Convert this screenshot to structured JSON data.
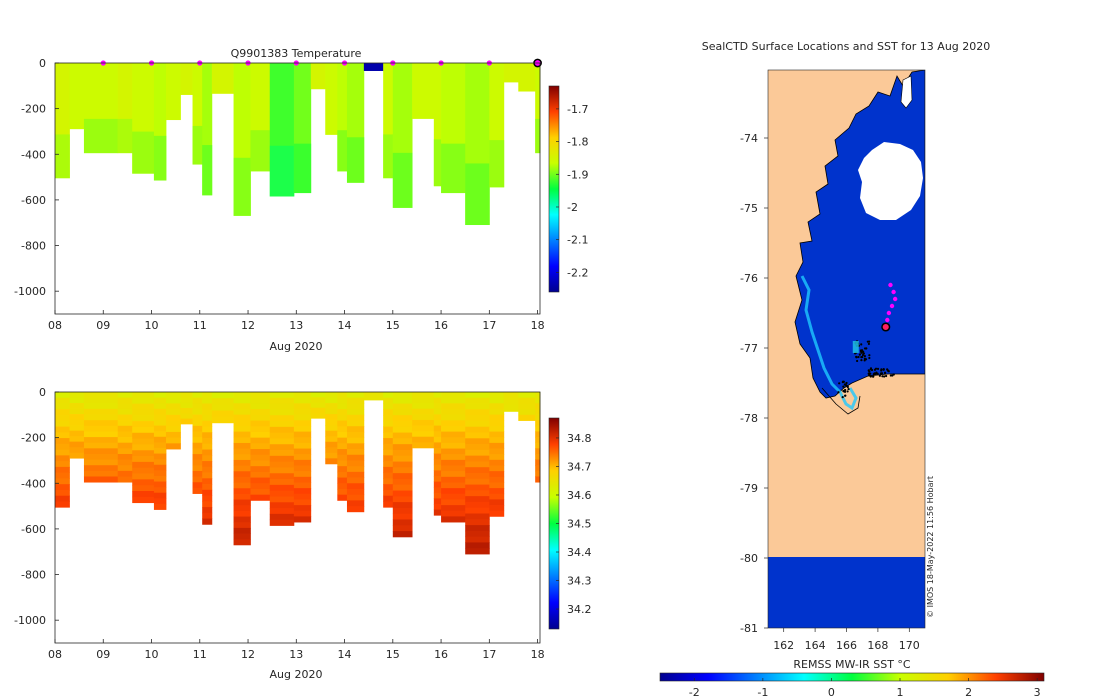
{
  "chart_data": [
    {
      "type": "heatmap",
      "title": "Q9901383  Temperature",
      "xlabel": "Aug 2020",
      "ylabel": "",
      "x_ticks": [
        "08",
        "09",
        "10",
        "11",
        "12",
        "13",
        "14",
        "15",
        "16",
        "17",
        "18"
      ],
      "x_tick_values": [
        8,
        9,
        10,
        11,
        12,
        13,
        14,
        15,
        16,
        17,
        18
      ],
      "xlim": [
        8,
        18.05
      ],
      "ylim": [
        -1100,
        0
      ],
      "y_ticks": [
        0,
        -200,
        -400,
        -600,
        -800,
        -1000
      ],
      "y_tick_labels": [
        "0",
        "-200",
        "-400",
        "-600",
        "-800",
        "-1000"
      ],
      "colorbar": {
        "ticks": [
          "-1.7",
          "-1.8",
          "-1.9",
          "-2",
          "-2.1",
          "-2.2"
        ],
        "tick_values": [
          -1.7,
          -1.8,
          -1.9,
          -2.0,
          -2.1,
          -2.2
        ],
        "range": [
          -2.26,
          -1.63
        ]
      },
      "profile_dates": [
        9,
        10,
        11,
        12,
        13,
        14,
        15,
        16,
        17
      ],
      "highlight_date": 18.0,
      "profiles": [
        {
          "start": 8.0,
          "end": 8.3,
          "depth": 505,
          "value": -1.85
        },
        {
          "start": 8.3,
          "end": 8.6,
          "depth": 290,
          "value": -1.86
        },
        {
          "start": 8.6,
          "end": 9.3,
          "depth": 395,
          "value": -1.86
        },
        {
          "start": 9.3,
          "end": 9.6,
          "depth": 395,
          "value": -1.85
        },
        {
          "start": 9.6,
          "end": 10.05,
          "depth": 485,
          "value": -1.86
        },
        {
          "start": 10.05,
          "end": 10.3,
          "depth": 515,
          "value": -1.87
        },
        {
          "start": 10.3,
          "end": 10.6,
          "depth": 250,
          "value": -1.86
        },
        {
          "start": 10.6,
          "end": 10.85,
          "depth": 140,
          "value": -1.85
        },
        {
          "start": 10.85,
          "end": 11.05,
          "depth": 445,
          "value": -1.86
        },
        {
          "start": 11.05,
          "end": 11.25,
          "depth": 580,
          "value": -1.88
        },
        {
          "start": 11.25,
          "end": 11.7,
          "depth": 135,
          "value": -1.85
        },
        {
          "start": 11.7,
          "end": 12.05,
          "depth": 670,
          "value": -1.87
        },
        {
          "start": 12.05,
          "end": 12.45,
          "depth": 475,
          "value": -1.86
        },
        {
          "start": 12.45,
          "end": 12.95,
          "depth": 585,
          "value": -1.92
        },
        {
          "start": 12.95,
          "end": 13.3,
          "depth": 570,
          "value": -1.9
        },
        {
          "start": 13.3,
          "end": 13.6,
          "depth": 115,
          "value": -1.85
        },
        {
          "start": 13.6,
          "end": 13.85,
          "depth": 315,
          "value": -1.86
        },
        {
          "start": 13.85,
          "end": 14.05,
          "depth": 475,
          "value": -1.87
        },
        {
          "start": 14.05,
          "end": 14.4,
          "depth": 525,
          "value": -1.88
        },
        {
          "start": 14.4,
          "end": 14.8,
          "depth": 35,
          "value": -2.24
        },
        {
          "start": 14.8,
          "end": 15.0,
          "depth": 505,
          "value": -1.86
        },
        {
          "start": 15.0,
          "end": 15.4,
          "depth": 635,
          "value": -1.88
        },
        {
          "start": 15.4,
          "end": 15.85,
          "depth": 245,
          "value": -1.86
        },
        {
          "start": 15.85,
          "end": 16.0,
          "depth": 540,
          "value": -1.86
        },
        {
          "start": 16.0,
          "end": 16.5,
          "depth": 570,
          "value": -1.87
        },
        {
          "start": 16.5,
          "end": 17.0,
          "depth": 710,
          "value": -1.88
        },
        {
          "start": 17.0,
          "end": 17.3,
          "depth": 545,
          "value": -1.86
        },
        {
          "start": 17.3,
          "end": 17.6,
          "depth": 85,
          "value": -1.85
        },
        {
          "start": 17.6,
          "end": 17.95,
          "depth": 125,
          "value": -1.85
        },
        {
          "start": 17.95,
          "end": 18.05,
          "depth": 395,
          "value": -1.86
        }
      ]
    },
    {
      "type": "heatmap",
      "title": "",
      "xlabel": "Aug 2020",
      "ylabel": "",
      "x_ticks": [
        "08",
        "09",
        "10",
        "11",
        "12",
        "13",
        "14",
        "15",
        "16",
        "17",
        "18"
      ],
      "x_tick_values": [
        8,
        9,
        10,
        11,
        12,
        13,
        14,
        15,
        16,
        17,
        18
      ],
      "xlim": [
        8,
        18.05
      ],
      "ylim": [
        -1100,
        0
      ],
      "y_ticks": [
        0,
        -200,
        -400,
        -600,
        -800,
        -1000
      ],
      "y_tick_labels": [
        "0",
        "-200",
        "-400",
        "-600",
        "-800",
        "-1000"
      ],
      "colorbar": {
        "ticks": [
          "34.8",
          "34.7",
          "34.6",
          "34.5",
          "34.4",
          "34.3",
          "34.2"
        ],
        "tick_values": [
          34.8,
          34.7,
          34.6,
          34.5,
          34.4,
          34.3,
          34.2
        ],
        "range": [
          34.13,
          34.87
        ]
      },
      "surface_value": 34.62,
      "deep_value": 34.84,
      "depth_scale": 750,
      "profiles": [
        {
          "start": 8.0,
          "end": 8.3,
          "depth": 505
        },
        {
          "start": 8.3,
          "end": 8.6,
          "depth": 290
        },
        {
          "start": 8.6,
          "end": 9.3,
          "depth": 395
        },
        {
          "start": 9.3,
          "end": 9.6,
          "depth": 395
        },
        {
          "start": 9.6,
          "end": 10.05,
          "depth": 485
        },
        {
          "start": 10.05,
          "end": 10.3,
          "depth": 515
        },
        {
          "start": 10.3,
          "end": 10.6,
          "depth": 250
        },
        {
          "start": 10.6,
          "end": 10.85,
          "depth": 140
        },
        {
          "start": 10.85,
          "end": 11.05,
          "depth": 445
        },
        {
          "start": 11.05,
          "end": 11.25,
          "depth": 580
        },
        {
          "start": 11.25,
          "end": 11.7,
          "depth": 135
        },
        {
          "start": 11.7,
          "end": 12.05,
          "depth": 670
        },
        {
          "start": 12.05,
          "end": 12.45,
          "depth": 475
        },
        {
          "start": 12.45,
          "end": 12.95,
          "depth": 585
        },
        {
          "start": 12.95,
          "end": 13.3,
          "depth": 570
        },
        {
          "start": 13.3,
          "end": 13.6,
          "depth": 115
        },
        {
          "start": 13.6,
          "end": 13.85,
          "depth": 315
        },
        {
          "start": 13.85,
          "end": 14.05,
          "depth": 475
        },
        {
          "start": 14.05,
          "end": 14.4,
          "depth": 525
        },
        {
          "start": 14.4,
          "end": 14.8,
          "depth": 35
        },
        {
          "start": 14.8,
          "end": 15.0,
          "depth": 505
        },
        {
          "start": 15.0,
          "end": 15.4,
          "depth": 635
        },
        {
          "start": 15.4,
          "end": 15.85,
          "depth": 245
        },
        {
          "start": 15.85,
          "end": 16.0,
          "depth": 540
        },
        {
          "start": 16.0,
          "end": 16.5,
          "depth": 570
        },
        {
          "start": 16.5,
          "end": 17.0,
          "depth": 710
        },
        {
          "start": 17.0,
          "end": 17.3,
          "depth": 545
        },
        {
          "start": 17.3,
          "end": 17.6,
          "depth": 85
        },
        {
          "start": 17.6,
          "end": 17.95,
          "depth": 125
        },
        {
          "start": 17.95,
          "end": 18.05,
          "depth": 395
        }
      ]
    },
    {
      "type": "heatmap",
      "title": "SealCTD Surface Locations and SST for 13 Aug 2020",
      "xlabel": "",
      "ylabel": "",
      "xlim": [
        161,
        171
      ],
      "ylim": [
        -81,
        -73
      ],
      "x_ticks": [
        "162",
        "164",
        "166",
        "168",
        "170"
      ],
      "x_tick_values": [
        162,
        164,
        166,
        168,
        170
      ],
      "y_ticks": [
        "-74",
        "-75",
        "-76",
        "-77",
        "-78",
        "-79",
        "-80",
        "-81"
      ],
      "y_tick_values": [
        -74,
        -75,
        -76,
        -77,
        -78,
        -79,
        -80,
        -81
      ],
      "sst_value": -1.8,
      "land_color": "#fbc998",
      "colorbar": {
        "label": "REMSS MW-IR SST °C",
        "ticks": [
          "-2",
          "-1",
          "0",
          "1",
          "2",
          "3"
        ],
        "tick_values": [
          -2,
          -1,
          0,
          1,
          2,
          3
        ],
        "range": [
          -2.5,
          3.1
        ]
      },
      "track_points": [
        {
          "lon": 168.8,
          "lat": -76.1
        },
        {
          "lon": 169.0,
          "lat": -76.2
        },
        {
          "lon": 169.1,
          "lat": -76.3
        },
        {
          "lon": 168.9,
          "lat": -76.4
        },
        {
          "lon": 168.7,
          "lat": -76.5
        },
        {
          "lon": 168.6,
          "lat": -76.6
        },
        {
          "lon": 168.5,
          "lat": -76.7
        }
      ],
      "highlight_point": {
        "lon": 168.5,
        "lat": -76.7
      },
      "credit": "© IMOS 18-May-2022 11:56 Hobart"
    }
  ],
  "colors": {
    "temp_green": "#00d21c",
    "temp_blue": "#0a0a8c",
    "marker_magenta": "#ff00ff",
    "ocean_blue": "#0033cc"
  }
}
